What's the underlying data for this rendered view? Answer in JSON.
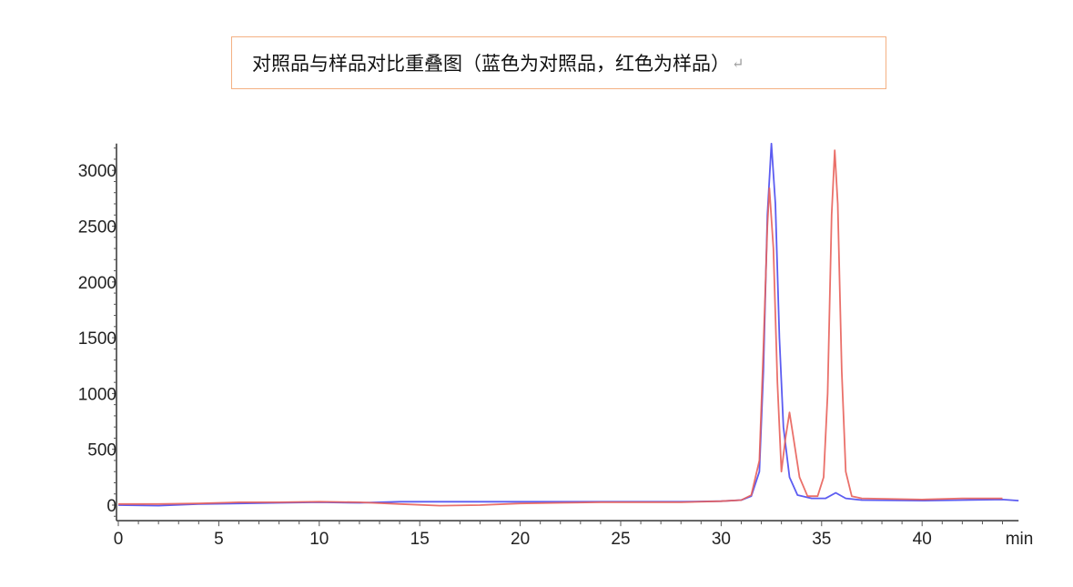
{
  "chart_data": {
    "type": "line",
    "title": "对照品与样品对比重叠图（蓝色为对照品，红色为样品）",
    "title_mark": "↵",
    "xlabel": "min",
    "ylabel": "",
    "xlim": [
      0,
      44.8
    ],
    "ylim": [
      -140,
      3240
    ],
    "xticks": [
      0,
      5,
      10,
      15,
      20,
      25,
      30,
      35,
      40
    ],
    "yticks": [
      0,
      500,
      1000,
      1500,
      2000,
      2500,
      3000
    ],
    "grid": false,
    "legend": "none",
    "series": [
      {
        "color": "#4a4af0",
        "points": [
          [
            0,
            0
          ],
          [
            2,
            -5
          ],
          [
            4,
            10
          ],
          [
            6,
            15
          ],
          [
            8,
            20
          ],
          [
            10,
            25
          ],
          [
            12,
            20
          ],
          [
            14,
            30
          ],
          [
            16,
            30
          ],
          [
            18,
            30
          ],
          [
            20,
            30
          ],
          [
            22,
            30
          ],
          [
            24,
            30
          ],
          [
            26,
            30
          ],
          [
            28,
            30
          ],
          [
            30,
            35
          ],
          [
            31,
            45
          ],
          [
            31.5,
            80
          ],
          [
            31.9,
            300
          ],
          [
            32.1,
            1200
          ],
          [
            32.3,
            2600
          ],
          [
            32.5,
            3240
          ],
          [
            32.7,
            2700
          ],
          [
            32.9,
            1500
          ],
          [
            33.1,
            700
          ],
          [
            33.4,
            250
          ],
          [
            33.8,
            90
          ],
          [
            34.5,
            60
          ],
          [
            35.2,
            60
          ],
          [
            35.7,
            110
          ],
          [
            36.2,
            60
          ],
          [
            37,
            45
          ],
          [
            40,
            40
          ],
          [
            42,
            45
          ],
          [
            44,
            50
          ],
          [
            44.8,
            40
          ]
        ]
      },
      {
        "color": "#e8605a",
        "points": [
          [
            0,
            10
          ],
          [
            2,
            10
          ],
          [
            4,
            15
          ],
          [
            6,
            25
          ],
          [
            8,
            25
          ],
          [
            10,
            30
          ],
          [
            12,
            25
          ],
          [
            14,
            10
          ],
          [
            16,
            -5
          ],
          [
            18,
            0
          ],
          [
            20,
            15
          ],
          [
            22,
            20
          ],
          [
            24,
            25
          ],
          [
            26,
            25
          ],
          [
            28,
            25
          ],
          [
            30,
            35
          ],
          [
            31,
            45
          ],
          [
            31.5,
            90
          ],
          [
            31.9,
            400
          ],
          [
            32.1,
            1400
          ],
          [
            32.3,
            2500
          ],
          [
            32.4,
            2840
          ],
          [
            32.6,
            2300
          ],
          [
            32.8,
            1100
          ],
          [
            33.0,
            300
          ],
          [
            33.2,
            600
          ],
          [
            33.4,
            830
          ],
          [
            33.6,
            600
          ],
          [
            33.9,
            250
          ],
          [
            34.3,
            80
          ],
          [
            34.8,
            80
          ],
          [
            35.1,
            250
          ],
          [
            35.3,
            1000
          ],
          [
            35.5,
            2600
          ],
          [
            35.65,
            3180
          ],
          [
            35.8,
            2700
          ],
          [
            36.0,
            1200
          ],
          [
            36.2,
            300
          ],
          [
            36.5,
            80
          ],
          [
            37,
            60
          ],
          [
            40,
            50
          ],
          [
            42,
            60
          ],
          [
            44,
            60
          ]
        ]
      }
    ]
  }
}
